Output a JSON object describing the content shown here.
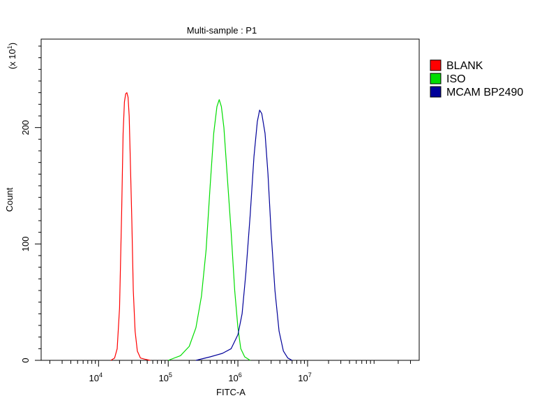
{
  "chart_data": {
    "type": "line",
    "title": "Multi-sample : P1",
    "xlabel": "FITC-A",
    "ylabel": "Count",
    "y_multiplier": "(x 10",
    "y_multiplier_exp": "1",
    "y_multiplier_close": ")",
    "x_scale": "log",
    "xlim": [
      1500,
      400000000
    ],
    "ylim": [
      0,
      276
    ],
    "x_ticks": [
      {
        "value": 10000,
        "base": "10",
        "exp": "4"
      },
      {
        "value": 100000,
        "base": "10",
        "exp": "5"
      },
      {
        "value": 1000000,
        "base": "10",
        "exp": "6"
      },
      {
        "value": 10000000,
        "base": "10",
        "exp": "7"
      }
    ],
    "y_ticks": [
      {
        "value": 0,
        "label": "0"
      },
      {
        "value": 100,
        "label": "100"
      },
      {
        "value": 200,
        "label": "200"
      }
    ],
    "grid": false,
    "legend_position": "top-right",
    "series": [
      {
        "name": "BLANK",
        "color": "#ff0000",
        "x": [
          15000,
          17000,
          18500,
          20000,
          21500,
          22500,
          23500,
          24500,
          25500,
          26500,
          27500,
          28500,
          30000,
          31500,
          33500,
          36000,
          40000,
          46000,
          55000
        ],
        "y": [
          0,
          2,
          10,
          45,
          130,
          195,
          222,
          229,
          230,
          226,
          210,
          175,
          120,
          60,
          25,
          8,
          2,
          1,
          0
        ]
      },
      {
        "name": "ISO",
        "color": "#00dd00",
        "x": [
          100000,
          150000,
          200000,
          250000,
          300000,
          350000,
          400000,
          450000,
          500000,
          540000,
          580000,
          630000,
          700000,
          800000,
          900000,
          1000000,
          1100000,
          1250000,
          1500000
        ],
        "y": [
          0,
          4,
          12,
          28,
          55,
          95,
          150,
          195,
          218,
          224,
          218,
          200,
          160,
          110,
          60,
          28,
          10,
          3,
          0
        ]
      },
      {
        "name": "MCAM BP2490",
        "color": "#000099",
        "x": [
          250000,
          400000,
          600000,
          800000,
          1000000,
          1150000,
          1300000,
          1500000,
          1700000,
          1900000,
          2050000,
          2200000,
          2450000,
          2700000,
          3000000,
          3400000,
          3900000,
          4500000,
          5200000,
          6000000
        ],
        "y": [
          0,
          3,
          6,
          10,
          22,
          40,
          75,
          125,
          175,
          205,
          215,
          212,
          195,
          160,
          110,
          60,
          25,
          8,
          2,
          0
        ]
      }
    ]
  }
}
